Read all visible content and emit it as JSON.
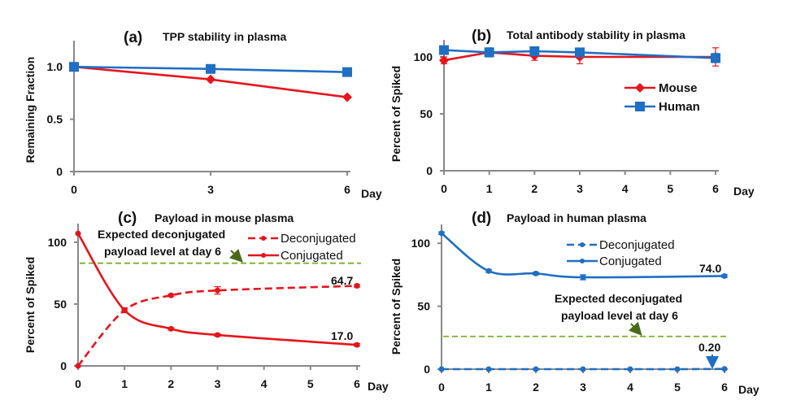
{
  "colors": {
    "mouse": "#e8141b",
    "human": "#1f6fc4",
    "expected": "#7ab02a",
    "arrow": "#4a6a1a"
  },
  "chart_data": [
    {
      "type": "line",
      "panel": "(a)",
      "title": "TPP stability in plasma",
      "ylabel": "Remaining  Fraction",
      "xlabel": "Day",
      "xticks": [
        0,
        3,
        6
      ],
      "yticks": [
        0,
        0.5,
        1.0
      ],
      "ytick_labels": [
        "0",
        "0.5",
        "1.0"
      ],
      "xlim": [
        0,
        6
      ],
      "ylim": [
        0,
        1.25
      ],
      "series": [
        {
          "key": "mouse",
          "marker": "diamond",
          "x": [
            0,
            3,
            6
          ],
          "y": [
            1.0,
            0.88,
            0.71
          ]
        },
        {
          "key": "human",
          "marker": "square",
          "x": [
            0,
            3,
            6
          ],
          "y": [
            1.0,
            0.98,
            0.95
          ]
        }
      ]
    },
    {
      "type": "line",
      "panel": "(b)",
      "title": "Total antibody stability in plasma",
      "ylabel": "Percent of Spiked",
      "xlabel": "Day",
      "xticks": [
        0,
        1,
        2,
        3,
        4,
        5,
        6
      ],
      "yticks": [
        0,
        50,
        100
      ],
      "ytick_labels": [
        "0",
        "50",
        "100"
      ],
      "xlim": [
        0,
        6
      ],
      "ylim": [
        0,
        115
      ],
      "legend": "right",
      "series": [
        {
          "key": "mouse",
          "name": "Mouse",
          "marker": "diamond",
          "x": [
            0,
            1,
            2,
            3,
            6
          ],
          "y": [
            97,
            104,
            101,
            100,
            100
          ],
          "err": [
            3,
            3,
            4,
            6,
            8
          ]
        },
        {
          "key": "human",
          "name": "Human",
          "marker": "square",
          "x": [
            0,
            1,
            2,
            3,
            6
          ],
          "y": [
            106,
            104,
            105,
            104,
            99
          ],
          "err": [
            2,
            4,
            2,
            2,
            4
          ]
        }
      ]
    },
    {
      "type": "line",
      "panel": "(c)",
      "title": "Payload in mouse plasma",
      "ylabel": "Percent of Spiked",
      "xlabel": "Day",
      "xticks": [
        0,
        1,
        2,
        3,
        4,
        5,
        6
      ],
      "yticks": [
        0,
        50,
        100
      ],
      "ytick_labels": [
        "0",
        "50",
        "100"
      ],
      "xlim": [
        0,
        6
      ],
      "ylim": [
        0,
        115
      ],
      "legend": "top-right",
      "expected_level": 83,
      "expected_label": [
        "Expected deconjugated",
        "payload level at day 6"
      ],
      "series": [
        {
          "key": "mouse",
          "name": "Deconjugated",
          "dashed": true,
          "x": [
            0,
            1,
            2,
            3,
            6
          ],
          "y": [
            0,
            45,
            57,
            61,
            64.7
          ],
          "err": [
            0,
            2,
            1,
            3,
            1
          ]
        },
        {
          "key": "mouse",
          "name": "Conjugated",
          "dashed": false,
          "x": [
            0,
            1,
            2,
            3,
            6
          ],
          "y": [
            107,
            45,
            30,
            25,
            17.0
          ],
          "err": [
            0,
            1,
            1,
            1,
            1
          ]
        }
      ],
      "annotations": [
        "64.7",
        "17.0"
      ]
    },
    {
      "type": "line",
      "panel": "(d)",
      "title": "Payload in human plasma",
      "ylabel": "Percent of Spiked",
      "xlabel": "Day",
      "xticks": [
        0,
        1,
        2,
        3,
        4,
        5,
        6
      ],
      "yticks": [
        0,
        50,
        100
      ],
      "ytick_labels": [
        "0",
        "50",
        "100"
      ],
      "xlim": [
        0,
        6
      ],
      "ylim": [
        0,
        115
      ],
      "legend": "top-center",
      "expected_level": 26,
      "expected_label": [
        "Expected deconjugated",
        "payload level at day 6"
      ],
      "series": [
        {
          "key": "human",
          "name": "Deconjugated",
          "dashed": true,
          "x": [
            0,
            1,
            2,
            3,
            4,
            5,
            6
          ],
          "y": [
            0,
            0,
            0,
            0,
            0,
            0,
            0.2
          ],
          "err": [
            0,
            0,
            0,
            0,
            0,
            0,
            0
          ]
        },
        {
          "key": "human",
          "name": "Conjugated",
          "dashed": false,
          "x": [
            0,
            1,
            2,
            3,
            6
          ],
          "y": [
            108,
            78,
            76,
            73,
            74.0
          ],
          "err": [
            1,
            1,
            1,
            2,
            1
          ]
        }
      ],
      "annotations": [
        "74.0",
        "0.20"
      ]
    }
  ]
}
